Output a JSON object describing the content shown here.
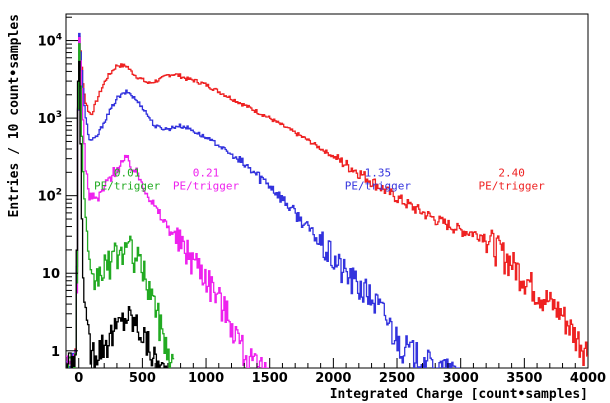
{
  "chart_data": {
    "type": "line",
    "title": "",
    "xlabel": "Integrated Charge [count•samples]",
    "ylabel": "Entries / 10 count•samples",
    "xlim": [
      -100,
      4000
    ],
    "ylim": [
      0.6,
      22000
    ],
    "yscale": "log",
    "x_ticks": [
      0,
      500,
      1000,
      1500,
      2000,
      2500,
      3000,
      3500,
      4000
    ],
    "y_ticks": [
      {
        "value": 1,
        "label": "1"
      },
      {
        "value": 10,
        "label": "10"
      },
      {
        "value": 100,
        "label": "10",
        "sup": "2"
      },
      {
        "value": 1000,
        "label": "10",
        "sup": "3"
      },
      {
        "value": 10000,
        "label": "10",
        "sup": "4"
      }
    ],
    "grid": false,
    "legend": "none",
    "annotations": [
      {
        "lines": [
          "0.01",
          "PE/trigger"
        ],
        "x": 380,
        "y": 140,
        "color": "#22aa22"
      },
      {
        "lines": [
          "0.21",
          "PE/trigger"
        ],
        "x": 1000,
        "y": 140,
        "color": "#ee22ee"
      },
      {
        "lines": [
          "1.35",
          "PE/trigger"
        ],
        "x": 2350,
        "y": 140,
        "color": "#3333dd"
      },
      {
        "lines": [
          "2.40",
          "PE/trigger"
        ],
        "x": 3400,
        "y": 140,
        "color": "#ee2222"
      }
    ],
    "series": [
      {
        "color": "#ee2222",
        "x": [
          -100,
          -20,
          0,
          10,
          30,
          50,
          80,
          100,
          130,
          170,
          220,
          300,
          380,
          400,
          450,
          550,
          650,
          700,
          750,
          800,
          850,
          900,
          1000,
          1200,
          1500,
          1800,
          2000,
          2200,
          2400,
          2600,
          2800,
          3000,
          3200,
          3400,
          3600,
          3800,
          3900,
          4000
        ],
        "y": [
          0.6,
          0.8,
          15000,
          9000,
          3500,
          1700,
          1200,
          1100,
          1500,
          2200,
          3300,
          4800,
          4700,
          4200,
          3500,
          2800,
          3200,
          3600,
          3700,
          3500,
          3200,
          3100,
          2700,
          1800,
          1000,
          520,
          320,
          200,
          120,
          75,
          50,
          36,
          30,
          14,
          6,
          3,
          1.6,
          1
        ]
      },
      {
        "color": "#3333dd",
        "x": [
          -100,
          -20,
          0,
          10,
          30,
          50,
          80,
          100,
          150,
          200,
          300,
          380,
          400,
          500,
          600,
          700,
          780,
          850,
          950,
          1100,
          1300,
          1500,
          1700,
          1900,
          2100,
          2300,
          2400,
          2500,
          2600,
          2700,
          2800,
          3000
        ],
        "y": [
          0.6,
          0.8,
          16000,
          9000,
          3000,
          1200,
          550,
          500,
          600,
          900,
          1800,
          2200,
          2100,
          1400,
          780,
          720,
          800,
          760,
          620,
          450,
          250,
          140,
          60,
          25,
          10,
          5,
          3,
          1.5,
          1,
          0.8,
          0.6,
          0.5
        ]
      },
      {
        "color": "#ee22ee",
        "x": [
          -100,
          -20,
          0,
          10,
          30,
          50,
          80,
          150,
          250,
          350,
          380,
          420,
          500,
          600,
          700,
          800,
          900,
          1000,
          1100,
          1200,
          1300,
          1400,
          1500
        ],
        "y": [
          0.6,
          0.8,
          16000,
          8000,
          1500,
          300,
          100,
          90,
          180,
          280,
          290,
          240,
          150,
          70,
          40,
          25,
          16,
          10,
          5,
          2.5,
          1,
          0.6,
          0.5
        ]
      },
      {
        "color": "#22aa22",
        "x": [
          -100,
          -20,
          0,
          10,
          30,
          50,
          80,
          100,
          200,
          300,
          380,
          420,
          500,
          550,
          600,
          650,
          700,
          750
        ],
        "y": [
          0.6,
          0.8,
          16000,
          5000,
          300,
          60,
          12,
          7,
          12,
          18,
          22,
          20,
          12,
          7,
          4,
          2,
          1,
          0.6
        ]
      },
      {
        "color": "#000000",
        "x": [
          -100,
          -20,
          -10,
          0,
          10,
          20,
          40,
          60,
          100,
          200,
          300,
          350,
          380,
          420,
          480,
          550,
          600,
          650,
          700
        ],
        "y": [
          0.6,
          0.8,
          500,
          16000,
          2000,
          100,
          8,
          2,
          1,
          1.3,
          2,
          2.6,
          3,
          2.6,
          2,
          1.2,
          0.8,
          0.6,
          0.5
        ]
      }
    ]
  }
}
